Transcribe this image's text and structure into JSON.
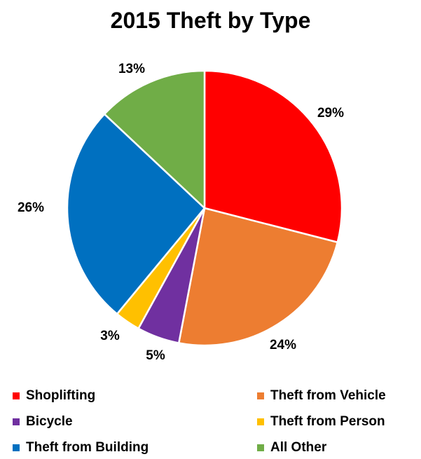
{
  "chart_data": {
    "type": "pie",
    "title": "2015 Theft by Type",
    "legend_position": "bottom",
    "slices": [
      {
        "name": "Shoplifting",
        "value": 29,
        "label": "29%",
        "color": "#FF0000"
      },
      {
        "name": "Theft from Vehicle",
        "value": 24,
        "label": "24%",
        "color": "#ED7D31"
      },
      {
        "name": "Bicycle",
        "value": 5,
        "label": "5%",
        "color": "#7030A0"
      },
      {
        "name": "Theft from Person",
        "value": 3,
        "label": "3%",
        "color": "#FFC000"
      },
      {
        "name": "Theft from Building",
        "value": 26,
        "label": "26%",
        "color": "#0070C0"
      },
      {
        "name": "All Other",
        "value": 13,
        "label": "13%",
        "color": "#70AD47"
      }
    ]
  }
}
